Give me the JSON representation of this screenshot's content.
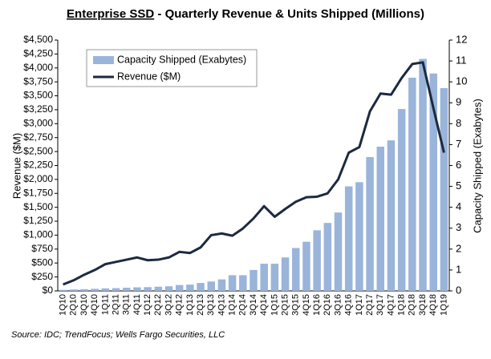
{
  "chart_data": {
    "type": "combo",
    "title": [
      "Enterprise SSD",
      " - Quarterly Revenue & Units Shipped (Millions)"
    ],
    "ylabel": "Revenue  ($M)",
    "y2label": "Capacity Shipped (Exabytes)",
    "source": "Source: IDC; TrendFocus; Wells Fargo Securities, LLC",
    "categories": [
      "1Q10",
      "2Q10",
      "3Q10",
      "4Q10",
      "1Q11",
      "2Q11",
      "3Q11",
      "4Q11",
      "1Q12",
      "2Q12",
      "3Q12",
      "4Q12",
      "1Q13",
      "2Q13",
      "3Q13",
      "4Q13",
      "1Q14",
      "2Q14",
      "3Q14",
      "4Q14",
      "1Q15",
      "2Q15",
      "3Q15",
      "4Q15",
      "1Q16",
      "2Q16",
      "3Q16",
      "4Q16",
      "1Q17",
      "2Q17",
      "3Q17",
      "4Q17",
      "1Q18",
      "2Q18",
      "3Q18",
      "4Q18",
      "1Q19"
    ],
    "series": [
      {
        "name": "Capacity Shipped (Exabytes)",
        "type": "bar",
        "axis": "y2",
        "color": "#9ab4da",
        "values": [
          0.05,
          0.07,
          0.08,
          0.1,
          0.12,
          0.13,
          0.15,
          0.17,
          0.18,
          0.2,
          0.22,
          0.28,
          0.3,
          0.38,
          0.45,
          0.55,
          0.75,
          0.75,
          1.0,
          1.3,
          1.3,
          1.6,
          2.05,
          2.35,
          2.9,
          3.25,
          3.75,
          5.0,
          5.2,
          6.4,
          6.9,
          7.2,
          8.7,
          10.2,
          11.1,
          10.4,
          9.7
        ]
      },
      {
        "name": "Revenue ($M)",
        "type": "line",
        "axis": "y",
        "color": "#1c2a40",
        "values": [
          115,
          190,
          290,
          375,
          480,
          520,
          560,
          600,
          550,
          560,
          600,
          700,
          680,
          780,
          1000,
          1030,
          990,
          1120,
          1300,
          1520,
          1330,
          1470,
          1600,
          1680,
          1690,
          1750,
          2000,
          2480,
          2580,
          3220,
          3540,
          3520,
          3820,
          4070,
          4100,
          3280,
          2480
        ]
      }
    ],
    "ylim": [
      0,
      4500
    ],
    "yticks": [
      {
        "value": 0,
        "label": "$0"
      },
      {
        "value": 250,
        "label": "$250"
      },
      {
        "value": 500,
        "label": "$500"
      },
      {
        "value": 750,
        "label": "$750"
      },
      {
        "value": 1000,
        "label": "$1,000"
      },
      {
        "value": 1250,
        "label": "$1,250"
      },
      {
        "value": 1500,
        "label": "$1,500"
      },
      {
        "value": 1750,
        "label": "$1,750"
      },
      {
        "value": 2000,
        "label": "$2,000"
      },
      {
        "value": 2250,
        "label": "$2,250"
      },
      {
        "value": 2500,
        "label": "$2,500"
      },
      {
        "value": 2750,
        "label": "$2,750"
      },
      {
        "value": 3000,
        "label": "$3,000"
      },
      {
        "value": 3250,
        "label": "$3,250"
      },
      {
        "value": 3500,
        "label": "$3,500"
      },
      {
        "value": 3750,
        "label": "$3,750"
      },
      {
        "value": 4000,
        "label": "$4,000"
      },
      {
        "value": 4250,
        "label": "$4,250"
      },
      {
        "value": 4500,
        "label": "$4,500"
      }
    ],
    "y2lim": [
      0,
      12
    ],
    "y2ticks": [
      0,
      1,
      2,
      3,
      4,
      5,
      6,
      7,
      8,
      9,
      10,
      11,
      12
    ],
    "legend": "upper left"
  }
}
